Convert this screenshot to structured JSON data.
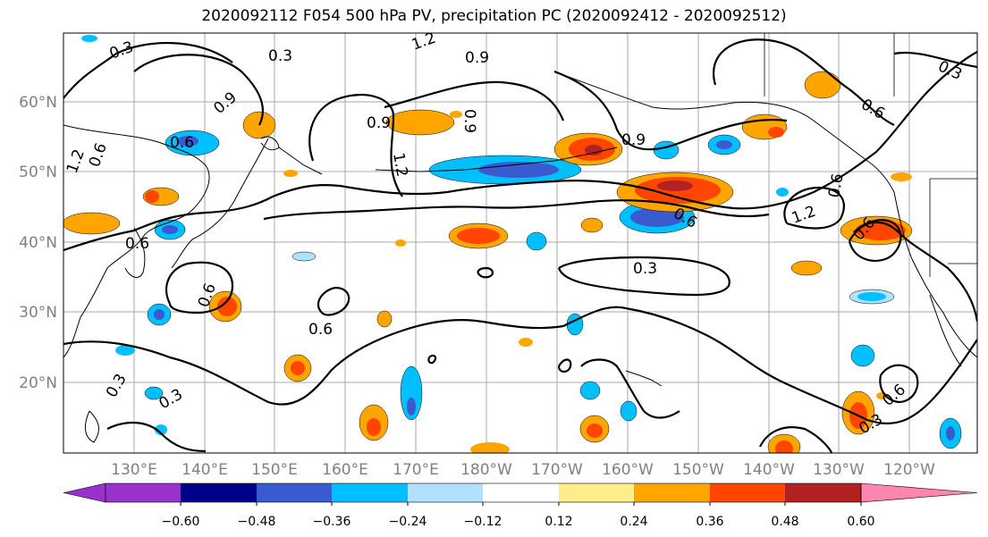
{
  "title": "2020092112 F054 500 hPa PV, precipitation PC (2020092412 - 2020092512)",
  "map": {
    "lat_labels": [
      "60°N",
      "50°N",
      "40°N",
      "30°N",
      "20°N"
    ],
    "lon_labels": [
      "130°E",
      "140°E",
      "150°E",
      "160°E",
      "170°E",
      "180°W",
      "170°W",
      "160°W",
      "150°W",
      "140°W",
      "130°W",
      "120°W"
    ],
    "contour_labels": [
      "0.3",
      "0.3",
      "0.3",
      "1.2",
      "0.9",
      "0.9",
      "0.6",
      "0.9",
      "1.2",
      "0.6",
      "0.9",
      "0.6",
      "0.6",
      "1.2",
      "0.9",
      "0.6",
      "0.6",
      "0.6",
      "0.3",
      "0.6",
      "0.3",
      "0.3",
      "0.6",
      "0.3",
      "0.6",
      "1.2"
    ]
  },
  "colorbar": {
    "ticks": [
      "−0.60",
      "−0.48",
      "−0.36",
      "−0.24",
      "−0.12",
      "0.12",
      "0.24",
      "0.36",
      "0.48",
      "0.60"
    ],
    "colors": [
      "#9932cc",
      "#00008b",
      "#3a5bd0",
      "#00bfff",
      "#b0e2ff",
      "#ffffff",
      "#ffec8b",
      "#ffa500",
      "#ff4500",
      "#b22222",
      "#ff86b0"
    ]
  }
}
